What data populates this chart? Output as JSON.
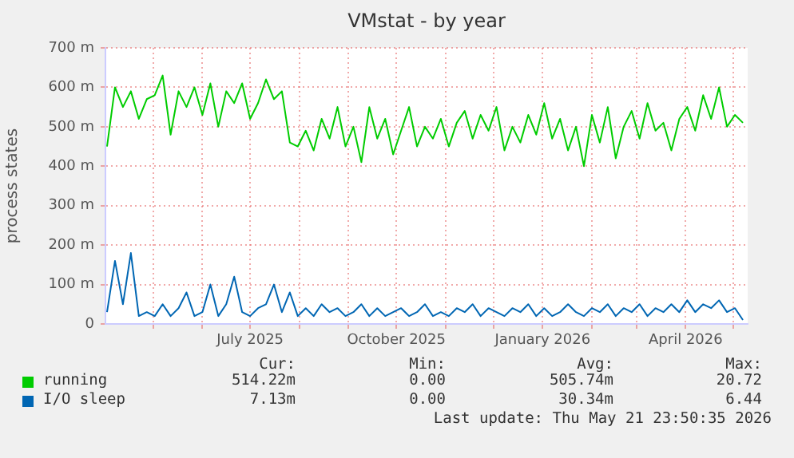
{
  "chart_data": {
    "type": "line",
    "title": "VMstat - by year",
    "ylabel": "process states",
    "x": [
      "2025-04-02",
      "2025-04-07",
      "2025-04-12",
      "2025-04-17",
      "2025-04-22",
      "2025-04-27",
      "2025-05-02",
      "2025-05-07",
      "2025-05-12",
      "2025-05-17",
      "2025-05-22",
      "2025-05-27",
      "2025-06-01",
      "2025-06-06",
      "2025-06-11",
      "2025-06-16",
      "2025-06-21",
      "2025-06-26",
      "2025-07-01",
      "2025-07-06",
      "2025-07-11",
      "2025-07-16",
      "2025-07-21",
      "2025-07-26",
      "2025-07-31",
      "2025-08-05",
      "2025-08-10",
      "2025-08-15",
      "2025-08-20",
      "2025-08-25",
      "2025-08-30",
      "2025-09-04",
      "2025-09-09",
      "2025-09-14",
      "2025-09-19",
      "2025-09-24",
      "2025-09-29",
      "2025-10-04",
      "2025-10-09",
      "2025-10-14",
      "2025-10-19",
      "2025-10-24",
      "2025-10-29",
      "2025-11-03",
      "2025-11-08",
      "2025-11-13",
      "2025-11-18",
      "2025-11-23",
      "2025-11-28",
      "2025-12-03",
      "2025-12-08",
      "2025-12-13",
      "2025-12-18",
      "2025-12-23",
      "2025-12-28",
      "2026-01-02",
      "2026-01-07",
      "2026-01-12",
      "2026-01-17",
      "2026-01-22",
      "2026-01-27",
      "2026-02-01",
      "2026-02-06",
      "2026-02-11",
      "2026-02-16",
      "2026-02-21",
      "2026-02-26",
      "2026-03-03",
      "2026-03-08",
      "2026-03-13",
      "2026-03-18",
      "2026-03-23",
      "2026-03-28",
      "2026-04-02",
      "2026-04-07",
      "2026-04-12",
      "2026-04-17",
      "2026-04-22",
      "2026-04-27",
      "2026-05-02",
      "2026-05-07"
    ],
    "series": [
      {
        "name": "running",
        "color": "#00cc00",
        "values": [
          450,
          600,
          550,
          590,
          520,
          570,
          580,
          630,
          480,
          590,
          550,
          600,
          530,
          610,
          500,
          590,
          560,
          610,
          520,
          560,
          620,
          570,
          590,
          460,
          450,
          490,
          440,
          520,
          470,
          550,
          450,
          500,
          410,
          550,
          470,
          520,
          430,
          490,
          550,
          450,
          500,
          470,
          520,
          450,
          510,
          540,
          470,
          530,
          490,
          550,
          440,
          500,
          460,
          530,
          480,
          560,
          470,
          520,
          440,
          500,
          400,
          530,
          460,
          550,
          420,
          500,
          540,
          470,
          560,
          490,
          510,
          440,
          520,
          550,
          490,
          580,
          520,
          600,
          500,
          530,
          510
        ]
      },
      {
        "name": "I/O sleep",
        "color": "#0066b3",
        "values": [
          30,
          160,
          50,
          180,
          20,
          30,
          20,
          50,
          20,
          40,
          80,
          20,
          30,
          100,
          20,
          50,
          120,
          30,
          20,
          40,
          50,
          100,
          30,
          80,
          20,
          40,
          20,
          50,
          30,
          40,
          20,
          30,
          50,
          20,
          40,
          20,
          30,
          40,
          20,
          30,
          50,
          20,
          30,
          20,
          40,
          30,
          50,
          20,
          40,
          30,
          20,
          40,
          30,
          50,
          20,
          40,
          20,
          30,
          50,
          30,
          20,
          40,
          30,
          50,
          20,
          40,
          30,
          50,
          20,
          40,
          30,
          50,
          30,
          60,
          30,
          50,
          40,
          60,
          30,
          40,
          10
        ]
      }
    ],
    "xlim": [
      "2025-04-01",
      "2026-05-10"
    ],
    "xticks": [
      {
        "value": "2025-05-01",
        "label": null
      },
      {
        "value": "2025-06-01",
        "label": null
      },
      {
        "value": "2025-07-01",
        "label": "July 2025"
      },
      {
        "value": "2025-08-01",
        "label": null
      },
      {
        "value": "2025-09-01",
        "label": null
      },
      {
        "value": "2025-10-01",
        "label": "October 2025"
      },
      {
        "value": "2025-11-01",
        "label": null
      },
      {
        "value": "2025-12-01",
        "label": null
      },
      {
        "value": "2026-01-01",
        "label": "January 2026"
      },
      {
        "value": "2026-02-01",
        "label": null
      },
      {
        "value": "2026-03-01",
        "label": null
      },
      {
        "value": "2026-04-01",
        "label": "April 2026"
      },
      {
        "value": "2026-05-01",
        "label": null
      }
    ],
    "ylim": [
      0,
      700
    ],
    "yticks": [
      0,
      {
        "value": 100,
        "label": "100 m"
      },
      {
        "value": 200,
        "label": "200 m"
      },
      {
        "value": 300,
        "label": "300 m"
      },
      {
        "value": 400,
        "label": "400 m"
      },
      {
        "value": 500,
        "label": "500 m"
      },
      {
        "value": 600,
        "label": "600 m"
      },
      {
        "value": 700,
        "label": "700 m"
      }
    ],
    "grid": true,
    "legend": "bottom left",
    "marker": "none",
    "line_style": "solid",
    "annotations": [
      "Cur:",
      "Min:",
      "Avg:",
      "Max:",
      "514.22m",
      "0.00",
      "505.74m",
      "20.72",
      "7.13m",
      "0.00",
      "30.34m",
      "6.44",
      "Last update: Thu May 21 23:50:35 2026"
    ]
  }
}
